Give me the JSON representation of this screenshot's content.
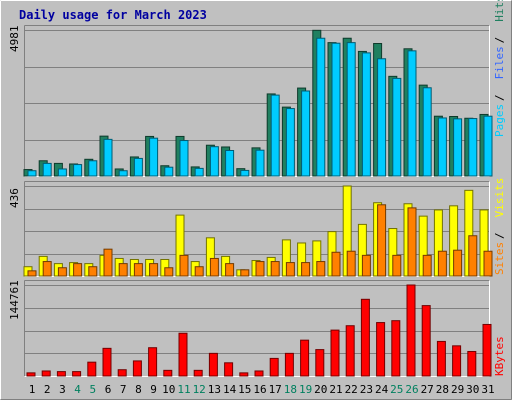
{
  "chart_data": [
    {
      "type": "bar",
      "title": "Daily usage for March 2023",
      "ymax_label": "4981",
      "ylim": [
        0,
        4981
      ],
      "legend": [
        {
          "name": "Pages",
          "color": "#00ccff"
        },
        {
          "name": "Files",
          "color": "#3366ff"
        },
        {
          "name": "Hits",
          "color": "#208060"
        }
      ],
      "categories": [
        "1",
        "2",
        "3",
        "4",
        "5",
        "6",
        "7",
        "8",
        "9",
        "10",
        "11",
        "12",
        "13",
        "14",
        "15",
        "16",
        "17",
        "18",
        "19",
        "20",
        "21",
        "22",
        "23",
        "24",
        "25",
        "26",
        "27",
        "28",
        "29",
        "30",
        "31"
      ],
      "series": [
        {
          "name": "Hits",
          "color": "#208060",
          "values": [
            220,
            520,
            430,
            410,
            570,
            1360,
            240,
            650,
            1350,
            350,
            1350,
            310,
            1050,
            990,
            250,
            960,
            2800,
            2350,
            3000,
            4970,
            4550,
            4700,
            4250,
            4520,
            3400,
            4340,
            3100,
            2040,
            2030,
            1970,
            2100
          ]
        },
        {
          "name": "Pages",
          "color": "#00ccff",
          "values": [
            180,
            430,
            240,
            390,
            520,
            1250,
            180,
            600,
            1290,
            300,
            1210,
            260,
            1000,
            870,
            190,
            880,
            2760,
            2300,
            2900,
            4700,
            4530,
            4550,
            4200,
            4000,
            3330,
            4270,
            3010,
            1980,
            1950,
            1960,
            2040
          ]
        }
      ]
    },
    {
      "type": "bar",
      "ymax_label": "436",
      "ylim": [
        0,
        436
      ],
      "legend": [
        {
          "name": "Sites",
          "color": "#ff8000"
        },
        {
          "name": "Visits",
          "color": "#ffff00"
        }
      ],
      "categories": [
        "1",
        "2",
        "3",
        "4",
        "5",
        "6",
        "7",
        "8",
        "9",
        "10",
        "11",
        "12",
        "13",
        "14",
        "15",
        "16",
        "17",
        "18",
        "19",
        "20",
        "21",
        "22",
        "23",
        "24",
        "25",
        "26",
        "27",
        "28",
        "29",
        "30",
        "31"
      ],
      "series": [
        {
          "name": "Visits",
          "color": "#ffff00",
          "values": [
            45,
            95,
            60,
            65,
            60,
            100,
            85,
            80,
            80,
            80,
            295,
            70,
            185,
            95,
            30,
            75,
            90,
            175,
            160,
            170,
            215,
            436,
            250,
            355,
            230,
            350,
            290,
            320,
            340,
            415,
            320
          ]
        },
        {
          "name": "Sites",
          "color": "#ff8000",
          "values": [
            25,
            70,
            40,
            60,
            45,
            130,
            60,
            60,
            60,
            40,
            100,
            45,
            85,
            60,
            30,
            70,
            70,
            65,
            65,
            70,
            115,
            120,
            100,
            345,
            100,
            330,
            100,
            120,
            125,
            195,
            120
          ]
        }
      ]
    },
    {
      "type": "bar",
      "ymax_label": "144761",
      "ylim": [
        0,
        144761
      ],
      "legend": [
        {
          "name": "KBytes",
          "color": "#ff0000"
        }
      ],
      "categories": [
        "1",
        "2",
        "3",
        "4",
        "5",
        "6",
        "7",
        "8",
        "9",
        "10",
        "11",
        "12",
        "13",
        "14",
        "15",
        "16",
        "17",
        "18",
        "19",
        "20",
        "21",
        "22",
        "23",
        "24",
        "25",
        "26",
        "27",
        "28",
        "29",
        "30",
        "31"
      ],
      "series": [
        {
          "name": "KBytes",
          "color": "#ff0000",
          "values": [
            5000,
            8000,
            7000,
            7000,
            22000,
            44000,
            10000,
            24000,
            45000,
            9000,
            68000,
            9000,
            36000,
            21000,
            5000,
            8000,
            28000,
            36000,
            57000,
            42000,
            73000,
            80000,
            122000,
            85000,
            88000,
            144761,
            112000,
            55000,
            48000,
            39000,
            82000
          ]
        }
      ]
    }
  ],
  "weekend_days": [
    "4",
    "5",
    "11",
    "12",
    "18",
    "19",
    "25",
    "26"
  ]
}
